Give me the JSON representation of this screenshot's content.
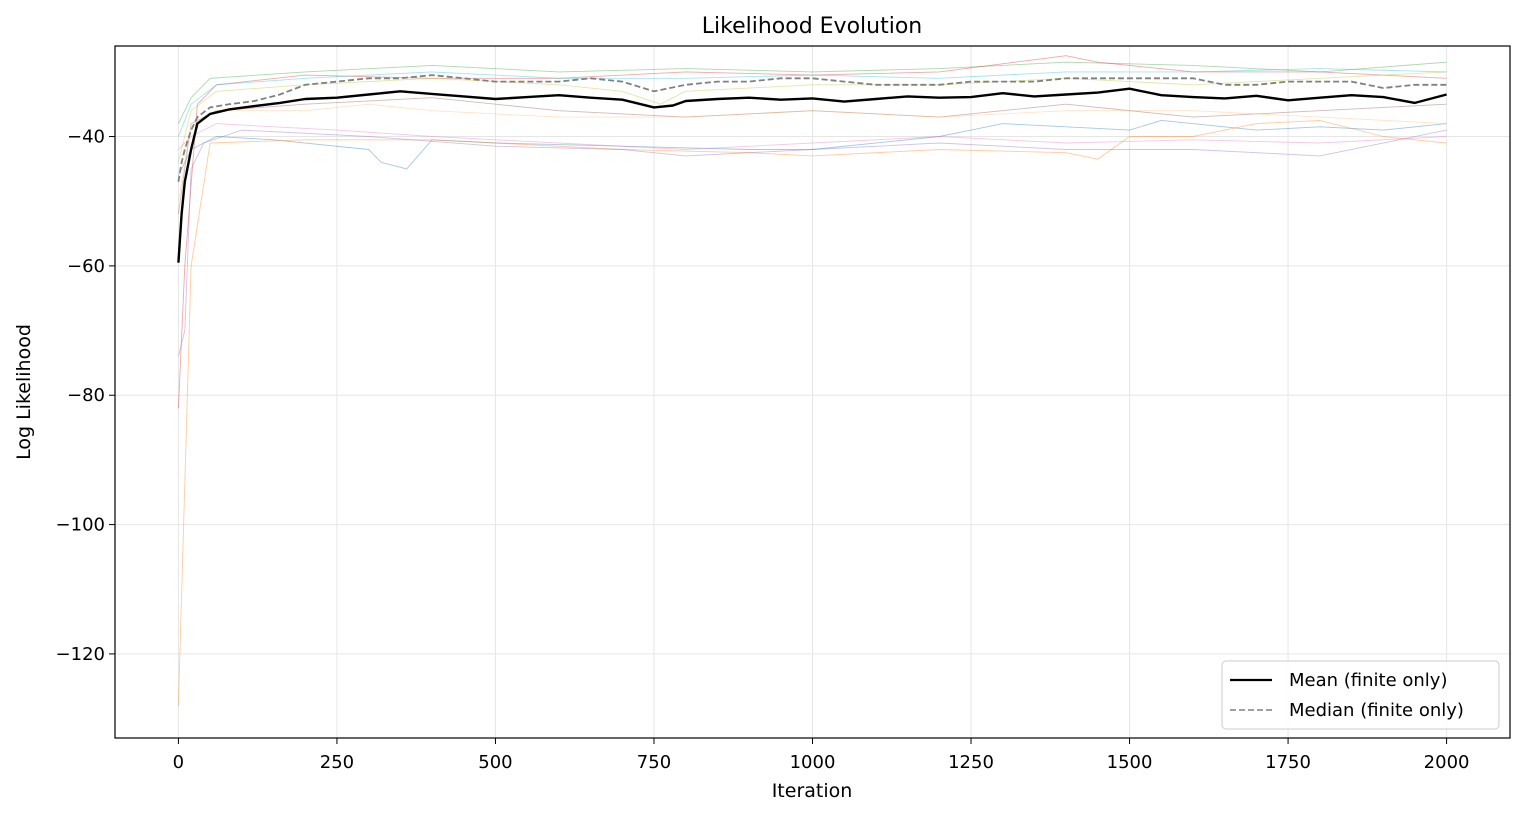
{
  "chart_data": {
    "type": "line",
    "title": "Likelihood Evolution",
    "xlabel": "Iteration",
    "ylabel": "Log Likelihood",
    "xlim": [
      -100,
      2100
    ],
    "ylim": [
      -133,
      -26
    ],
    "xticks": [
      0,
      250,
      500,
      750,
      1000,
      1250,
      1500,
      1750,
      2000
    ],
    "yticks": [
      -40,
      -60,
      -80,
      -100,
      -120
    ],
    "xtick_labels": [
      "0",
      "250",
      "500",
      "750",
      "1000",
      "1250",
      "1500",
      "1750",
      "2000"
    ],
    "ytick_labels": [
      "−40",
      "−60",
      "−80",
      "−100",
      "−120"
    ],
    "grid": true,
    "legend_position": "lower-right",
    "legend": [
      {
        "label": "Mean (finite only)",
        "style": "solid",
        "color": "#000000"
      },
      {
        "label": "Median (finite only)",
        "style": "dashed",
        "color": "#808080"
      }
    ],
    "series": [
      {
        "name": "Mean (finite only)",
        "color": "#000000",
        "style": "solid",
        "x": [
          0,
          5,
          10,
          20,
          30,
          50,
          80,
          120,
          160,
          200,
          250,
          300,
          350,
          400,
          450,
          500,
          550,
          600,
          650,
          700,
          750,
          780,
          800,
          850,
          900,
          950,
          1000,
          1050,
          1100,
          1150,
          1200,
          1250,
          1300,
          1350,
          1400,
          1450,
          1500,
          1550,
          1600,
          1650,
          1700,
          1750,
          1800,
          1850,
          1900,
          1950,
          2000
        ],
        "y": [
          -59.5,
          -52,
          -47,
          -42,
          -38,
          -36.5,
          -35.8,
          -35.3,
          -34.8,
          -34.2,
          -34.0,
          -33.5,
          -33.0,
          -33.4,
          -33.8,
          -34.2,
          -33.9,
          -33.6,
          -34.0,
          -34.3,
          -35.5,
          -35.2,
          -34.5,
          -34.2,
          -34.0,
          -34.3,
          -34.1,
          -34.6,
          -34.2,
          -33.8,
          -34.0,
          -33.9,
          -33.3,
          -33.8,
          -33.5,
          -33.2,
          -32.6,
          -33.6,
          -33.9,
          -34.1,
          -33.7,
          -34.4,
          -34.0,
          -33.6,
          -33.9,
          -34.8,
          -33.5
        ]
      },
      {
        "name": "Median (finite only)",
        "color": "#808080",
        "style": "dashed",
        "x": [
          0,
          5,
          10,
          20,
          30,
          50,
          80,
          120,
          160,
          200,
          250,
          300,
          350,
          400,
          450,
          500,
          550,
          600,
          650,
          700,
          750,
          800,
          850,
          900,
          950,
          1000,
          1050,
          1100,
          1150,
          1200,
          1250,
          1300,
          1350,
          1400,
          1450,
          1500,
          1550,
          1600,
          1650,
          1700,
          1750,
          1800,
          1850,
          1900,
          1950,
          2000
        ],
        "y": [
          -47,
          -44,
          -42,
          -39,
          -37,
          -35.5,
          -35,
          -34.5,
          -33.5,
          -32,
          -31.5,
          -31,
          -31,
          -30.5,
          -31,
          -31.5,
          -31.5,
          -31.5,
          -31,
          -31.5,
          -33,
          -32,
          -31.5,
          -31.5,
          -31,
          -31,
          -31.5,
          -32,
          -32,
          -32,
          -31.5,
          -31.5,
          -31.5,
          -31,
          -31,
          -31,
          -31,
          -31,
          -32,
          -32,
          -31.5,
          -31.5,
          -31.5,
          -32.5,
          -32,
          -32
        ]
      },
      {
        "name": "",
        "color": "#1f77b4",
        "style": "thin",
        "x": [
          0,
          20,
          60,
          150,
          300,
          320,
          360,
          400,
          500,
          700,
          900,
          1000,
          1200,
          1250,
          1300,
          1400,
          1500,
          1550,
          1700,
          1800,
          1900,
          2000
        ],
        "y": [
          -46,
          -42,
          -40,
          -40.5,
          -42,
          -44,
          -45,
          -40.5,
          -41,
          -41.5,
          -42,
          -42,
          -40,
          -39,
          -38,
          -38.5,
          -39,
          -37.5,
          -39,
          -38.5,
          -39,
          -38
        ]
      },
      {
        "name": "",
        "color": "#ff7f0e",
        "style": "thin",
        "x": [
          0,
          20,
          50,
          200,
          400,
          700,
          900,
          1000,
          1200,
          1400,
          1450,
          1500,
          1600,
          1700,
          1800,
          1900,
          2000
        ],
        "y": [
          -128,
          -60,
          -41,
          -40.5,
          -40.5,
          -42,
          -42.5,
          -43,
          -42,
          -42.5,
          -43.5,
          -40,
          -40,
          -38,
          -37.5,
          -40,
          -41
        ]
      },
      {
        "name": "",
        "color": "#2ca02c",
        "style": "thin",
        "x": [
          0,
          20,
          50,
          200,
          400,
          600,
          800,
          1000,
          1200,
          1400,
          1600,
          1800,
          2000
        ],
        "y": [
          -38,
          -34,
          -31,
          -30,
          -29,
          -30,
          -29.5,
          -30,
          -29.5,
          -28.5,
          -29,
          -30,
          -28.5
        ]
      },
      {
        "name": "",
        "color": "#d62728",
        "style": "thin",
        "x": [
          0,
          10,
          30,
          60,
          200,
          400,
          600,
          800,
          1000,
          1200,
          1400,
          1450,
          1600,
          1800,
          2000
        ],
        "y": [
          -82,
          -60,
          -35,
          -32,
          -30.5,
          -31,
          -31,
          -30,
          -30.5,
          -30,
          -27.5,
          -28.5,
          -30,
          -30,
          -31
        ]
      },
      {
        "name": "",
        "color": "#9467bd",
        "style": "thin",
        "x": [
          0,
          10,
          20,
          40,
          100,
          300,
          500,
          700,
          800,
          1000,
          1200,
          1400,
          1600,
          1800,
          2000
        ],
        "y": [
          -74,
          -70,
          -45,
          -41,
          -39,
          -40,
          -41.5,
          -42,
          -43,
          -42,
          -41,
          -42,
          -42,
          -43,
          -39
        ]
      },
      {
        "name": "",
        "color": "#e377c2",
        "style": "thin",
        "x": [
          0,
          20,
          60,
          150,
          250,
          400,
          600,
          800,
          1000,
          1200,
          1400,
          1600,
          1800,
          2000
        ],
        "y": [
          -42,
          -40,
          -38,
          -38.5,
          -39,
          -40,
          -41,
          -42,
          -41,
          -40,
          -41,
          -40.5,
          -41,
          -40
        ]
      },
      {
        "name": "",
        "color": "#17becf",
        "style": "thin",
        "x": [
          0,
          20,
          60,
          200,
          400,
          600,
          800,
          1000,
          1200,
          1400,
          1600,
          1800,
          2000
        ],
        "y": [
          -40,
          -35,
          -32,
          -31,
          -30,
          -31,
          -31,
          -30.5,
          -31,
          -30,
          -30,
          -29.5,
          -30
        ]
      },
      {
        "name": "",
        "color": "#bcbd22",
        "style": "thin",
        "x": [
          0,
          20,
          60,
          200,
          400,
          600,
          700,
          760,
          800,
          1000,
          1200,
          1400,
          1600,
          1800,
          2000
        ],
        "y": [
          -44,
          -36,
          -33,
          -32,
          -31,
          -32,
          -33,
          -35,
          -33,
          -32,
          -32,
          -31,
          -32,
          -31,
          -30
        ]
      },
      {
        "name": "",
        "color": "#8c564b",
        "style": "thin",
        "x": [
          0,
          20,
          60,
          200,
          400,
          600,
          800,
          1000,
          1200,
          1400,
          1600,
          1800,
          2000
        ],
        "y": [
          -52,
          -38,
          -36,
          -35,
          -34,
          -36,
          -37,
          -36,
          -37,
          -35,
          -37,
          -36,
          -35
        ]
      },
      {
        "name": "",
        "color": "#ffbb78",
        "style": "thin",
        "x": [
          0,
          20,
          60,
          200,
          300,
          400,
          600,
          800,
          1000,
          1200,
          1400,
          1600,
          1800,
          2000
        ],
        "y": [
          -50,
          -38,
          -36,
          -36,
          -35,
          -36,
          -37,
          -37,
          -36,
          -37,
          -36,
          -36,
          -37,
          -38
        ]
      }
    ]
  }
}
